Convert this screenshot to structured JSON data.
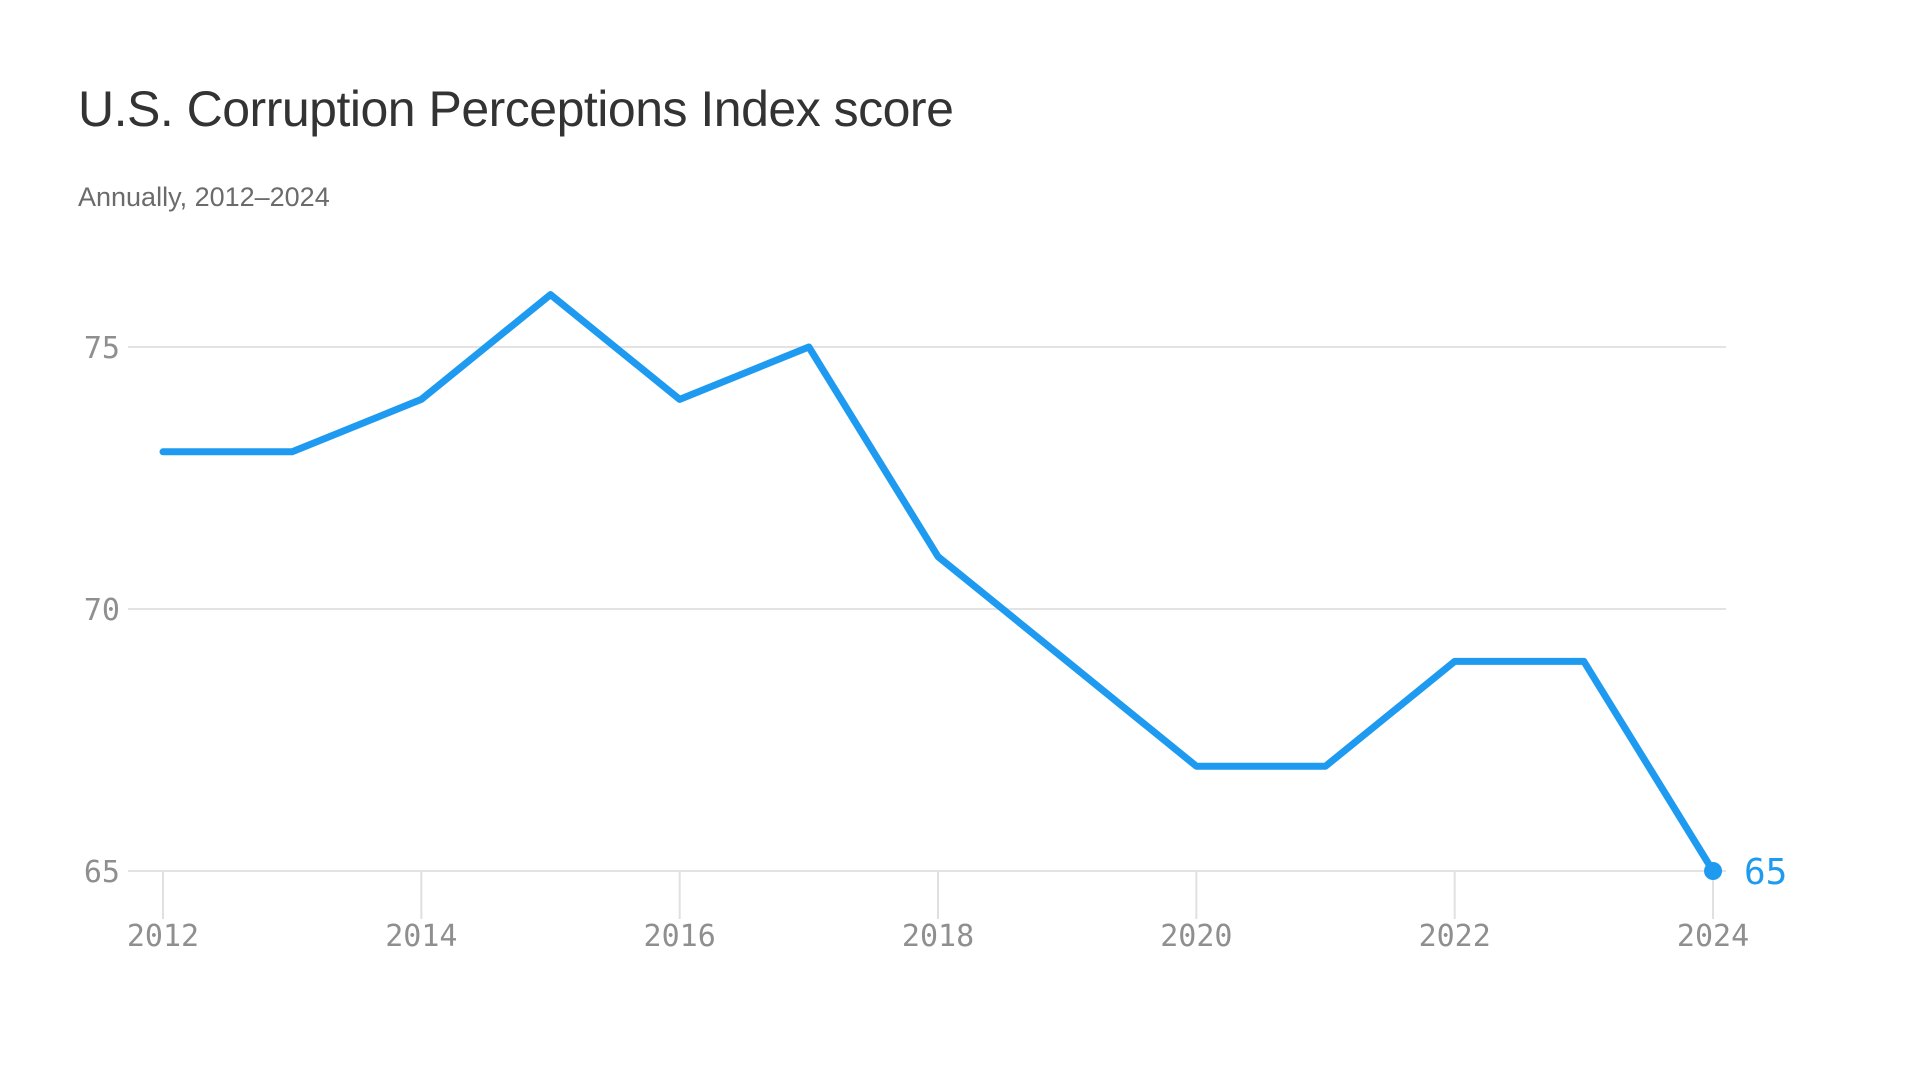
{
  "header": {
    "title": "U.S. Corruption Perceptions Index score",
    "subtitle": "Annually, 2012–2024"
  },
  "chart_data": {
    "type": "line",
    "title": "U.S. Corruption Perceptions Index score",
    "subtitle": "Annually, 2012–2024",
    "x": [
      2012,
      2013,
      2014,
      2015,
      2016,
      2017,
      2018,
      2019,
      2020,
      2021,
      2022,
      2023,
      2024
    ],
    "series": [
      {
        "name": "U.S. Corruption Perceptions Index score",
        "values": [
          73,
          73,
          74,
          76,
          74,
          75,
          71,
          69,
          67,
          67,
          69,
          69,
          65
        ]
      }
    ],
    "x_ticks": [
      2012,
      2014,
      2016,
      2018,
      2020,
      2022,
      2024
    ],
    "x_tick_labels": [
      "2012",
      "2014",
      "2016",
      "2018",
      "2020",
      "2022",
      "2024"
    ],
    "y_ticks": [
      65,
      70,
      75
    ],
    "y_tick_labels": [
      "65",
      "70",
      "75"
    ],
    "xlim": [
      2012,
      2024
    ],
    "ylim": [
      65,
      77
    ],
    "xlabel": "",
    "ylabel": "",
    "grid": "horizontal",
    "legend": "none",
    "end_label": "65",
    "end_point": {
      "x": 2024,
      "value": 65
    },
    "colors": {
      "line": "#1e9bf0",
      "grid": "#e3e3e3",
      "tick": "#e0e0e0",
      "axis_text": "#8f8f8f",
      "title": "#333333",
      "subtitle": "#6b6b6b",
      "background": "#ffffff"
    }
  }
}
